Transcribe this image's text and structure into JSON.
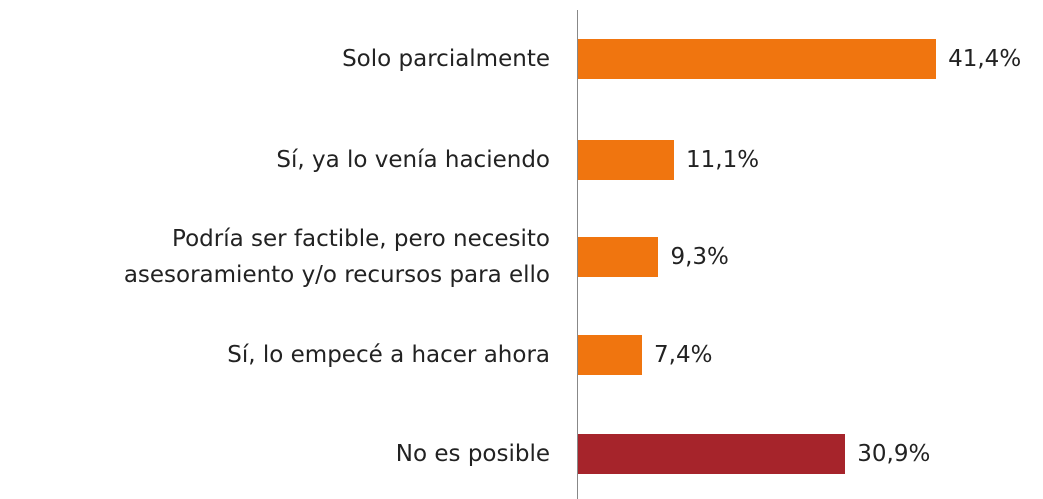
{
  "chart_data": {
    "type": "bar",
    "orientation": "horizontal",
    "categories": [
      "Solo parcialmente",
      "Sí, ya lo venía haciendo",
      "Podría ser factible, pero necesito\nasesoramiento y/o recursos para ello",
      "Sí, lo empecé a hacer ahora",
      "No es posible"
    ],
    "values": [
      41.4,
      11.1,
      9.3,
      7.4,
      30.9
    ],
    "value_labels": [
      "41,4%",
      "11,1%",
      "9,3%",
      "7,4%",
      "30,9%"
    ],
    "colors": [
      "#f0750f",
      "#f0750f",
      "#f0750f",
      "#f0750f",
      "#a6242b"
    ]
  }
}
